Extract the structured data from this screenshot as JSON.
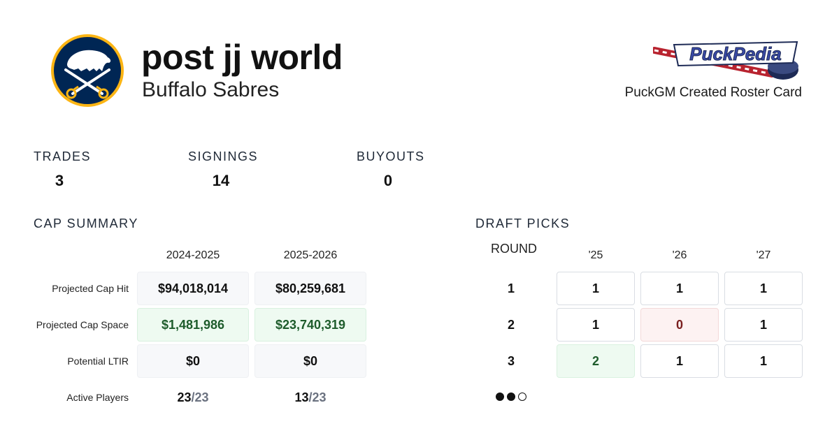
{
  "header": {
    "title": "post jj world",
    "team": "Buffalo Sabres",
    "team_logo_icon": "buffalo-sabres-logo-icon",
    "brand_logo_icon": "puckpedia-logo-icon",
    "brand_logo_text": "PuckPedia",
    "caption": "PuckGM Created Roster Card"
  },
  "stats": [
    {
      "label": "TRADES",
      "value": "3"
    },
    {
      "label": "SIGNINGS",
      "value": "14"
    },
    {
      "label": "BUYOUTS",
      "value": "0"
    }
  ],
  "cap_summary": {
    "title": "CAP SUMMARY",
    "seasons": [
      "2024-2025",
      "2025-2026"
    ],
    "rows": [
      {
        "label": "Projected Cap Hit",
        "values": [
          "$94,018,014",
          "$80,259,681"
        ]
      },
      {
        "label": "Projected Cap Space",
        "values": [
          "$1,481,986",
          "$23,740,319"
        ]
      },
      {
        "label": "Potential LTIR",
        "values": [
          "$0",
          "$0"
        ]
      }
    ],
    "active_players": {
      "label": "Active Players",
      "values": [
        {
          "count": "23",
          "max": "/23"
        },
        {
          "count": "13",
          "max": "/23"
        }
      ]
    }
  },
  "draft_picks": {
    "title": "DRAFT PICKS",
    "round_header": "ROUND",
    "years": [
      "'25",
      "'26",
      "'27"
    ],
    "rounds": [
      {
        "round": "1",
        "picks": [
          "1",
          "1",
          "1"
        ]
      },
      {
        "round": "2",
        "picks": [
          "1",
          "0",
          "1"
        ]
      },
      {
        "round": "3",
        "picks": [
          "2",
          "1",
          "1"
        ]
      }
    ],
    "pagination_icon": "pagination-dots-icon"
  },
  "colors": {
    "navy": "#002654",
    "gold": "#FCB514",
    "green_bg": "#eefaf1",
    "green_text": "#1e5c2c",
    "red_bg": "#fdf2f2",
    "red_text": "#7a1f1f"
  }
}
